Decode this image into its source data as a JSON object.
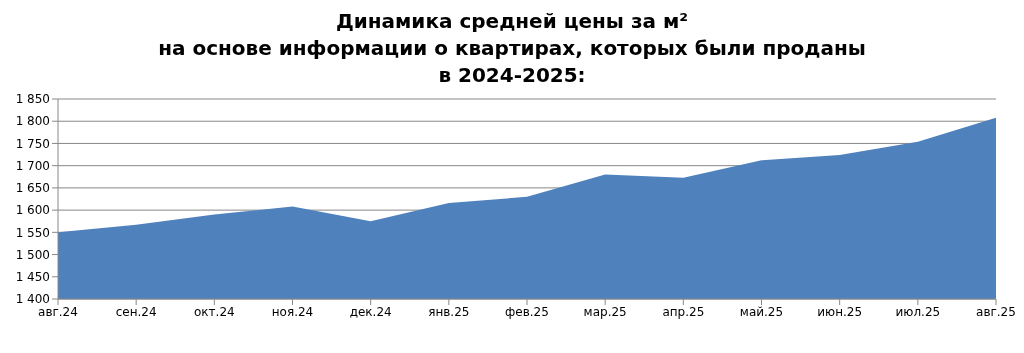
{
  "chart_data": {
    "type": "area",
    "title": "Динамика средней цены за м²\nна основе информации о квартирах, которых были проданы\nв 2024-2025:",
    "categories": [
      "авг.24",
      "сен.24",
      "окт.24",
      "ноя.24",
      "дек.24",
      "янв.25",
      "фев.25",
      "мар.25",
      "апр.25",
      "май.25",
      "июн.25",
      "июл.25",
      "авг.25"
    ],
    "series": [
      {
        "color": "#4f81bd",
        "values": [
          1550,
          1567,
          1590,
          1608,
          1575,
          1616,
          1630,
          1680,
          1673,
          1712,
          1724,
          1754,
          1808
        ]
      }
    ],
    "ylim": [
      1400,
      1850
    ],
    "yticks": [
      {
        "value": 1400,
        "label": "1 400"
      },
      {
        "value": 1450,
        "label": "1 450"
      },
      {
        "value": 1500,
        "label": "1 500"
      },
      {
        "value": 1550,
        "label": "1 550"
      },
      {
        "value": 1600,
        "label": "1 600"
      },
      {
        "value": 1650,
        "label": "1 650"
      },
      {
        "value": 1700,
        "label": "1 700"
      },
      {
        "value": 1750,
        "label": "1 750"
      },
      {
        "value": 1800,
        "label": "1 800"
      },
      {
        "value": 1850,
        "label": "1 850"
      }
    ],
    "grid": "y",
    "legend": false
  }
}
